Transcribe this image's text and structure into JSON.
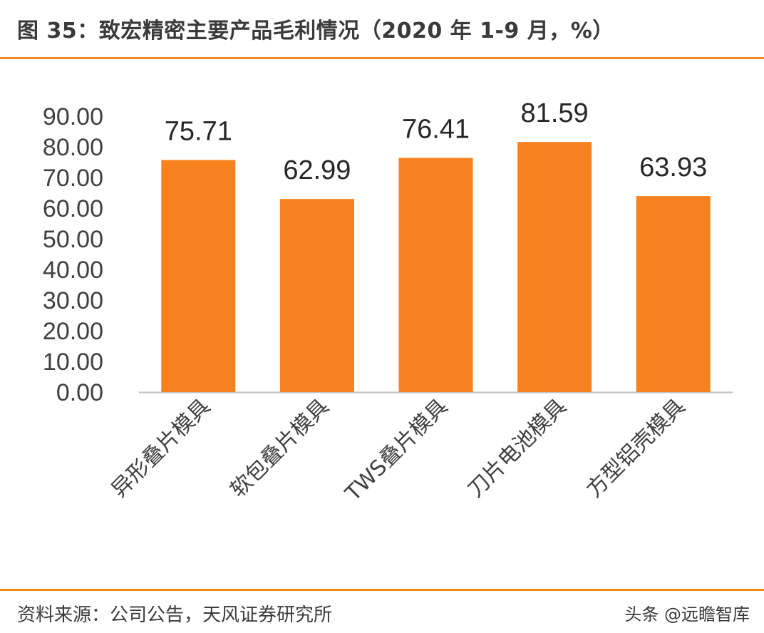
{
  "header": {
    "title": "图 35：致宏精密主要产品毛利情况（2020 年 1-9 月，%）"
  },
  "footer": {
    "source": "资料来源：公司公告，天风证券研究所",
    "watermark": "头条 @远瞻智库"
  },
  "colors": {
    "bar": "#f5821f",
    "accent_rule": "#f08a1c",
    "axis_text": "#404040"
  },
  "chart_data": {
    "type": "bar",
    "title": "",
    "xlabel": "",
    "ylabel": "",
    "categories": [
      "异形叠片模具",
      "软包叠片模具",
      "TWS叠片模具",
      "刀片电池模具",
      "方型铝壳模具"
    ],
    "values": [
      75.71,
      62.99,
      76.41,
      81.59,
      63.93
    ],
    "value_labels": [
      "75.71",
      "62.99",
      "76.41",
      "81.59",
      "63.93"
    ],
    "ylim": [
      0,
      90
    ],
    "yticks": [
      "0.00",
      "10.00",
      "20.00",
      "30.00",
      "40.00",
      "50.00",
      "60.00",
      "70.00",
      "80.00",
      "90.00"
    ],
    "grid": false,
    "legend": "none"
  }
}
